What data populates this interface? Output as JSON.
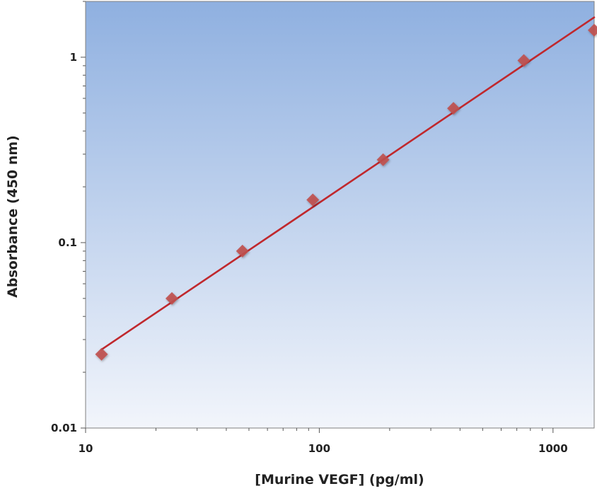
{
  "chart_data": {
    "type": "scatter",
    "title": "",
    "xlabel": "[Murine VEGF] (pg/ml)",
    "ylabel": "Absorbance (450 nm)",
    "x_scale": "log",
    "y_scale": "log",
    "xlim": [
      10,
      1500
    ],
    "ylim": [
      0.01,
      2
    ],
    "x_ticks": [
      10,
      100,
      1000
    ],
    "x_tick_labels": [
      "10",
      "100",
      "1000"
    ],
    "y_ticks": [
      0.01,
      0.1,
      1
    ],
    "y_tick_labels": [
      "0.01",
      "0.1",
      "1"
    ],
    "grid": false,
    "legend": "none",
    "series": [
      {
        "kind": "points",
        "marker": "diamond",
        "color": "#c0504d",
        "x": [
          11.7,
          23.4,
          46.9,
          93.8,
          187.5,
          375,
          750,
          1500
        ],
        "y": [
          0.025,
          0.05,
          0.09,
          0.17,
          0.28,
          0.53,
          0.96,
          1.4
        ]
      },
      {
        "kind": "fit-line",
        "color": "#c0282d",
        "x": [
          11.7,
          1500
        ],
        "y": [
          0.0265,
          1.64
        ]
      }
    ],
    "colors": {
      "background_top": "#8fb0e0",
      "background_bottom": "#f2f5fb"
    }
  }
}
